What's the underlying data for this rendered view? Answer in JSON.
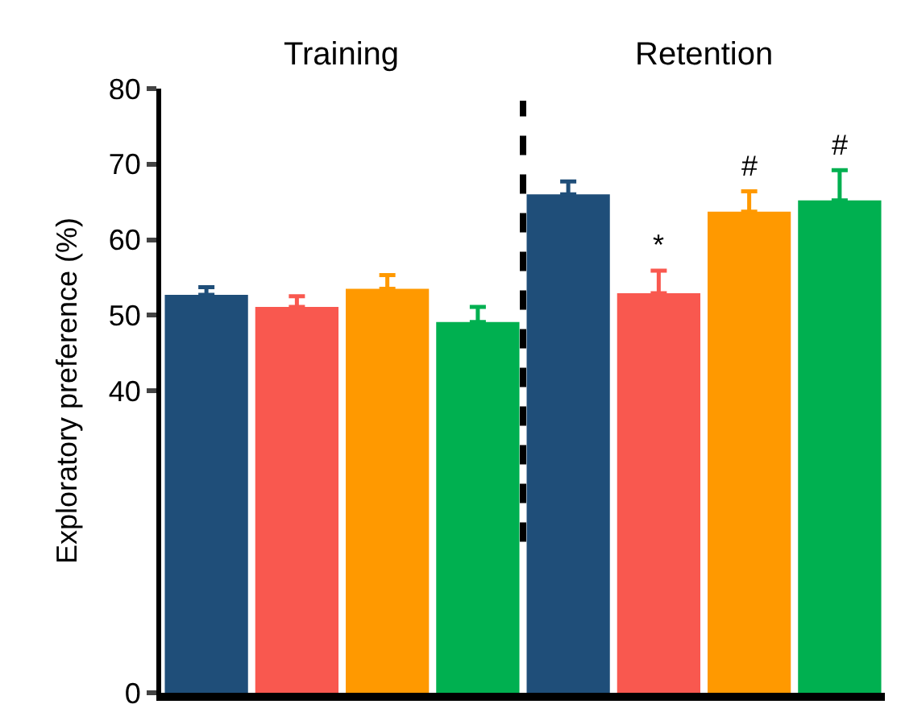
{
  "chart_data": {
    "type": "bar",
    "ylabel": "Exploratory preference (%)",
    "categories": [
      null,
      null,
      null,
      null,
      null,
      null,
      null,
      null
    ],
    "values": [
      52.7,
      51.1,
      53.5,
      49.1,
      66.0,
      52.9,
      63.7,
      65.2
    ],
    "colors": [
      "#1f4e79",
      "#f9584f",
      "#ff9900",
      "#00b050",
      "#1f4e79",
      "#f9584f",
      "#ff9900",
      "#00b050"
    ],
    "errors": [
      [
        52.7,
        53.7
      ],
      [
        51.1,
        52.5
      ],
      [
        53.5,
        55.3
      ],
      [
        49.1,
        51.1
      ],
      [
        66.0,
        67.7
      ],
      [
        52.9,
        55.9
      ],
      [
        63.7,
        66.4
      ],
      [
        65.2,
        69.2
      ]
    ],
    "value_labels": [
      null,
      null,
      null,
      null,
      null,
      "*",
      "#",
      "#"
    ],
    "annotations": [
      "Training",
      "Retention"
    ],
    "ylim": [
      0,
      80
    ],
    "yticks": [
      0,
      40,
      50,
      60,
      70,
      80
    ],
    "tick_labels": "y"
  }
}
